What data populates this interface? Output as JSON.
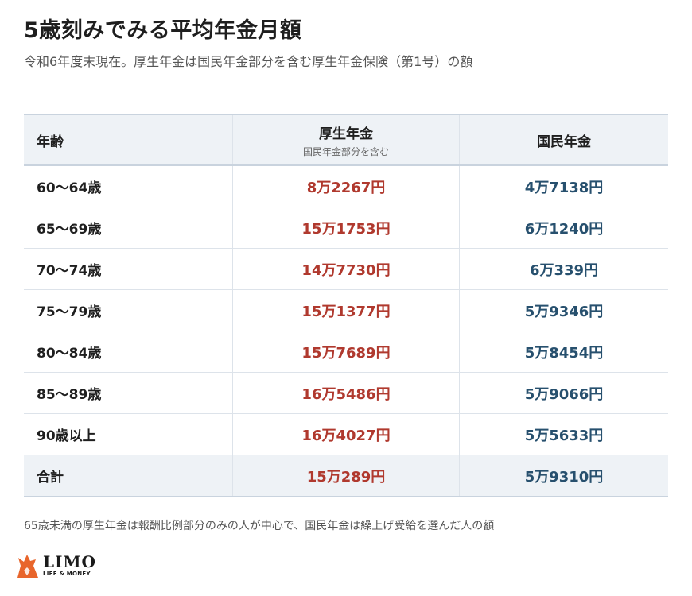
{
  "header": {
    "title": "5歳刻みでみる平均年金月額",
    "subtitle": "令和6年度末現在。厚生年金は国民年金部分を含む厚生年金保険（第1号）の額"
  },
  "table": {
    "columns": {
      "age": "年齢",
      "kousei": "厚生年金",
      "kousei_sub": "国民年金部分を含む",
      "kokumin": "国民年金"
    },
    "rows": [
      {
        "age": "60〜64歳",
        "kousei": "8万2267円",
        "kokumin": "4万7138円"
      },
      {
        "age": "65〜69歳",
        "kousei": "15万1753円",
        "kokumin": "6万1240円"
      },
      {
        "age": "70〜74歳",
        "kousei": "14万7730円",
        "kokumin": "6万339円"
      },
      {
        "age": "75〜79歳",
        "kousei": "15万1377円",
        "kokumin": "5万9346円"
      },
      {
        "age": "80〜84歳",
        "kousei": "15万7689円",
        "kokumin": "5万8454円"
      },
      {
        "age": "85〜89歳",
        "kousei": "16万5486円",
        "kokumin": "5万9066円"
      },
      {
        "age": "90歳以上",
        "kousei": "16万4027円",
        "kokumin": "5万5633円"
      }
    ],
    "total": {
      "age": "合計",
      "kousei": "15万289円",
      "kokumin": "5万9310円"
    }
  },
  "footnote": "65歳未満の厚生年金は報酬比例部分のみの人が中心で、国民年金は繰上げ受給を選んだ人の額",
  "logo": {
    "name": "LIMO",
    "tagline": "LIFE & MONEY",
    "icon": "fox-icon",
    "color": "#e8652b"
  },
  "colors": {
    "kousei": "#b0392e",
    "kokumin": "#27506e",
    "header_bg": "#eef2f6"
  }
}
